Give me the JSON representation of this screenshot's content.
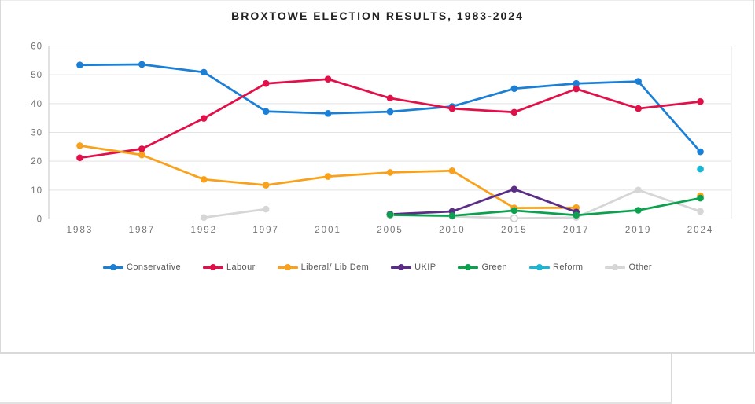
{
  "window": {
    "background": "#ffffff",
    "border_color": "#d9d9d9"
  },
  "chart_data": {
    "type": "line",
    "title": "BROXTOWE ELECTION RESULTS, 1983-2024",
    "categories": [
      "1983",
      "1987",
      "1992",
      "1997",
      "2001",
      "2005",
      "2010",
      "2015",
      "2017",
      "2019",
      "2024"
    ],
    "series": [
      {
        "name": "Conservative",
        "color": "#1b7fd6",
        "values": [
          53.4,
          53.6,
          50.9,
          37.3,
          36.6,
          37.2,
          39.0,
          45.2,
          47.0,
          47.7,
          23.3
        ]
      },
      {
        "name": "Labour",
        "color": "#e11049",
        "values": [
          21.2,
          24.3,
          34.9,
          47.0,
          48.5,
          41.9,
          38.3,
          37.0,
          45.1,
          38.3,
          40.7
        ]
      },
      {
        "name": "Liberal/ Lib Dem",
        "color": "#f9a11b",
        "values": [
          25.4,
          22.2,
          13.7,
          11.7,
          14.7,
          16.1,
          16.7,
          3.8,
          3.9,
          null,
          8.0
        ]
      },
      {
        "name": "UKIP",
        "color": "#5b2d86",
        "values": [
          null,
          null,
          null,
          null,
          null,
          1.6,
          2.6,
          10.3,
          2.4,
          null,
          null
        ]
      },
      {
        "name": "Green",
        "color": "#0ca14e",
        "values": [
          null,
          null,
          null,
          null,
          null,
          1.4,
          1.1,
          2.9,
          1.3,
          3.0,
          7.2
        ]
      },
      {
        "name": "Reform",
        "color": "#1ab6d6",
        "values": [
          null,
          null,
          null,
          null,
          null,
          null,
          null,
          null,
          null,
          null,
          17.3
        ]
      },
      {
        "name": "Other",
        "color": "#d6d6d6",
        "values": [
          null,
          null,
          0.5,
          3.4,
          null,
          1.5,
          0.9,
          0.2,
          0.5,
          10.0,
          2.6
        ]
      }
    ],
    "ylim": [
      0,
      60
    ],
    "yticks": [
      0,
      10,
      20,
      30,
      40,
      50,
      60
    ],
    "xlabel": "",
    "ylabel": "",
    "grid": true,
    "legend_position": "bottom",
    "hollow_markers": {
      "Other": [
        5,
        7
      ]
    },
    "axis_text_color": "#737373",
    "gridline_color": "#e3e3e3",
    "axis_line_color": "#c6c6c6"
  }
}
